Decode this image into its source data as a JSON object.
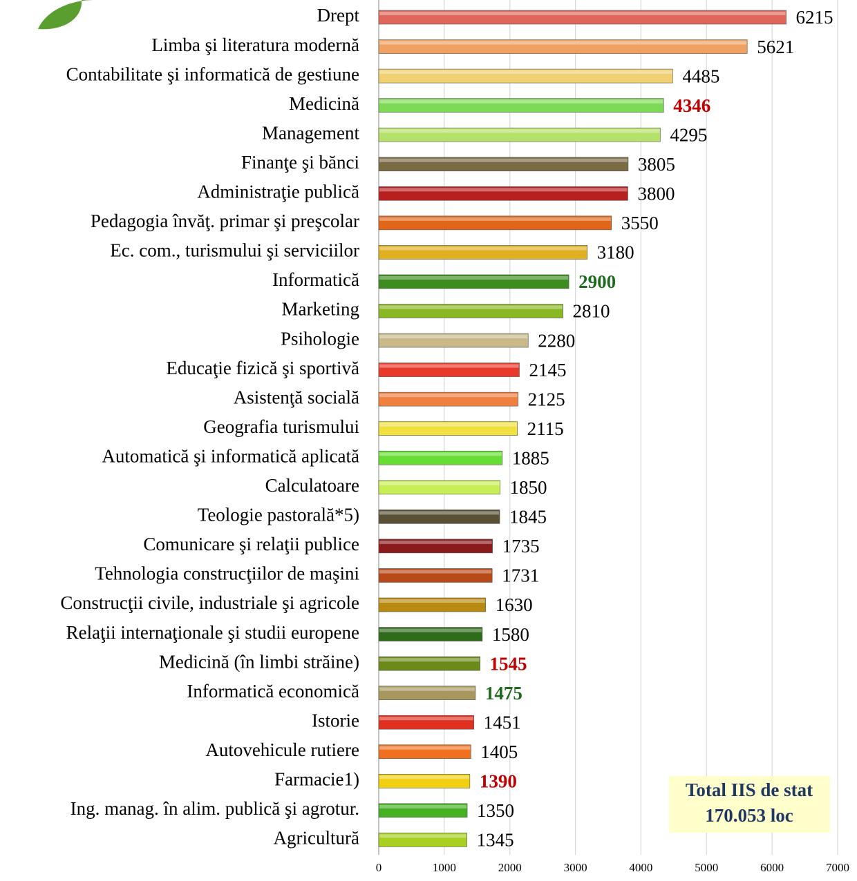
{
  "chart_data": {
    "type": "bar",
    "orientation": "horizontal",
    "categories": [
      "Drept",
      "Limba şi literatura modernă",
      "Contabilitate şi informatică de gestiune",
      "Medicină",
      "Management",
      "Finanţe şi bănci",
      "Administraţie publică",
      "Pedagogia învăţ. primar şi preşcolar",
      "Ec. com., turismului şi serviciilor",
      "Informatică",
      "Marketing",
      "Psihologie",
      "Educaţie fizică şi sportivă",
      "Asistenţă socială",
      "Geografia turismului",
      "Automatică şi informatică aplicată",
      "Calculatoare",
      "Teologie pastorală*5)",
      "Comunicare şi relaţii publice",
      "Tehnologia construcţiilor de maşini",
      "Construcţii civile, industriale şi agricole",
      "Relaţii internaţionale şi studii europene",
      "Medicină (în limbi străine)",
      "Informatică economică",
      "Istorie",
      "Autovehicule rutiere",
      "Farmacie1)",
      "Ing. manag. în alim. publică şi agrotur.",
      "Agricultură"
    ],
    "values": [
      6215,
      5621,
      4485,
      4346,
      4295,
      3805,
      3800,
      3550,
      3180,
      2900,
      2810,
      2280,
      2145,
      2125,
      2115,
      1885,
      1850,
      1845,
      1735,
      1731,
      1630,
      1580,
      1545,
      1475,
      1451,
      1405,
      1390,
      1350,
      1345
    ],
    "colors": [
      "#e0655a",
      "#f0a060",
      "#f0d070",
      "#7ed957",
      "#b5e06a",
      "#7a6b45",
      "#b82020",
      "#e0661a",
      "#e0b020",
      "#3d8c1f",
      "#8ab825",
      "#c8b88a",
      "#e8392a",
      "#f08040",
      "#f0e040",
      "#66dd33",
      "#c8ee55",
      "#5a5035",
      "#8b1a1a",
      "#b84a1a",
      "#b88a10",
      "#2e6b1a",
      "#6b8a1a",
      "#a89860",
      "#e03020",
      "#f07020",
      "#f0d010",
      "#44b022",
      "#a8d020"
    ],
    "value_label_colors": [
      "#000000",
      "#000000",
      "#000000",
      "#c00000",
      "#000000",
      "#000000",
      "#000000",
      "#000000",
      "#000000",
      "#1e6b1e",
      "#000000",
      "#000000",
      "#000000",
      "#000000",
      "#000000",
      "#000000",
      "#000000",
      "#000000",
      "#000000",
      "#000000",
      "#000000",
      "#000000",
      "#c00000",
      "#1e6b1e",
      "#000000",
      "#000000",
      "#c00000",
      "#000000",
      "#000000"
    ],
    "xlim": [
      0,
      7000
    ],
    "xticks": [
      0,
      1000,
      2000,
      3000,
      4000,
      5000,
      6000,
      7000
    ],
    "grid": true,
    "annotations": [
      "Total IIS de stat",
      "170.053 loc"
    ]
  }
}
